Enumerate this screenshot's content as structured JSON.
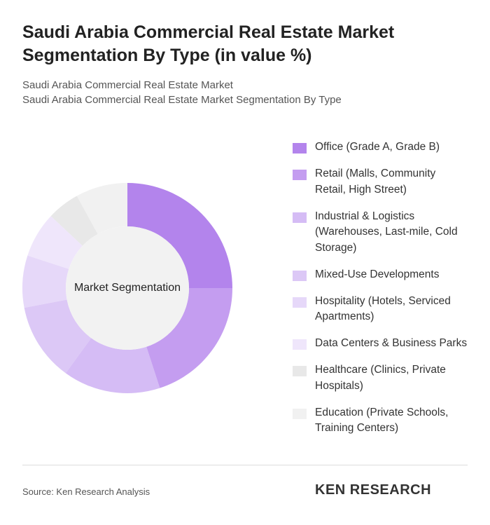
{
  "chart_data": {
    "type": "donut",
    "title": "Saudi Arabia Commercial Real Estate Market Segmentation By Type (in value %)",
    "subtitle": [
      "Saudi Arabia Commercial Real Estate Market",
      "Saudi Arabia Commercial Real Estate Market Segmentation By Type"
    ],
    "center_label": "Market Segmentation",
    "categories": [
      "Office (Grade A, Grade B)",
      "Retail (Malls, Community Retail, High Street)",
      "Industrial & Logistics (Warehouses, Last-mile, Cold Storage)",
      "Mixed-Use Developments",
      "Hospitality (Hotels, Serviced Apartments)",
      "Data Centers & Business Parks",
      "Healthcare (Clinics, Private Hospitals)",
      "Education (Private Schools, Training Centers)"
    ],
    "values": [
      25,
      20,
      15,
      12,
      8,
      7,
      5,
      8
    ],
    "colors": [
      "#b384ec",
      "#c49df0",
      "#d5bcf5",
      "#dcc8f6",
      "#e6d8f9",
      "#efe6fb",
      "#e8e8e8",
      "#f1f1f1"
    ],
    "source": "Source: Ken Research Analysis",
    "brand": "KEN RESEARCH"
  }
}
